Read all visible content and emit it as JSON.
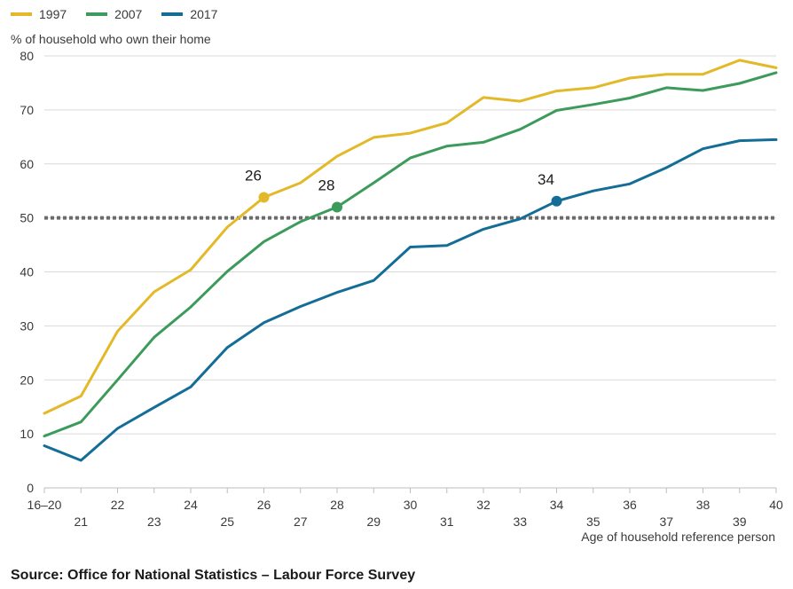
{
  "chart_data": {
    "type": "line",
    "ylabel": "% of household who own their home",
    "xlabel": "Age of household reference person",
    "ylim": [
      0,
      80
    ],
    "yticks": [
      0,
      10,
      20,
      30,
      40,
      50,
      60,
      70,
      80
    ],
    "categories": [
      "16–20",
      "21",
      "22",
      "23",
      "24",
      "25",
      "26",
      "27",
      "28",
      "29",
      "30",
      "31",
      "32",
      "33",
      "34",
      "35",
      "36",
      "37",
      "38",
      "39",
      "40"
    ],
    "reference_line": 50,
    "grid": true,
    "legend_position": "top-left",
    "series": [
      {
        "name": "1997",
        "color": "#e3b92a",
        "values": [
          13.8,
          17,
          29,
          36.3,
          40.4,
          48.3,
          53.8,
          56.5,
          61.4,
          64.9,
          65.7,
          67.6,
          72.3,
          71.6,
          73.5,
          74.1,
          75.9,
          76.6,
          76.6,
          79.2,
          77.8
        ]
      },
      {
        "name": "2007",
        "color": "#3c9b5b",
        "values": [
          9.6,
          12.2,
          20,
          27.9,
          33.5,
          40.1,
          45.6,
          49.3,
          52,
          56.5,
          61.1,
          63.3,
          64,
          66.4,
          69.9,
          71,
          72.2,
          74.1,
          73.6,
          74.9,
          76.9
        ]
      },
      {
        "name": "2017",
        "color": "#136d96",
        "values": [
          7.8,
          5.1,
          11,
          14.9,
          18.7,
          26,
          30.6,
          33.6,
          36.2,
          38.4,
          44.6,
          44.9,
          47.9,
          49.8,
          53.1,
          55,
          56.3,
          59.3,
          62.8,
          64.3,
          64.5
        ]
      }
    ],
    "annotations": [
      {
        "label": "26",
        "series": "1997",
        "category": "26",
        "value": 53.8
      },
      {
        "label": "28",
        "series": "2007",
        "category": "28",
        "value": 52
      },
      {
        "label": "34",
        "series": "2017",
        "category": "34",
        "value": 53.1
      }
    ]
  },
  "legend": [
    {
      "label": "1997",
      "color": "#e3b92a"
    },
    {
      "label": "2007",
      "color": "#3c9b5b"
    },
    {
      "label": "2017",
      "color": "#136d96"
    }
  ],
  "source": "Source: Office for National Statistics – Labour Force Survey"
}
